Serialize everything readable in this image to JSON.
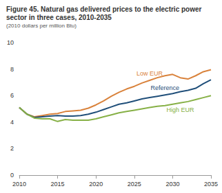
{
  "chart_data": {
    "type": "line",
    "title": "Figure 45. Natural gas delivered prices to the electric power sector in three cases, 2010-2035",
    "subtitle": "(2010 dollars per million Btu)",
    "x": [
      2010,
      2011,
      2012,
      2013,
      2014,
      2015,
      2016,
      2017,
      2018,
      2019,
      2020,
      2021,
      2022,
      2023,
      2024,
      2025,
      2026,
      2027,
      2028,
      2029,
      2030,
      2031,
      2032,
      2033,
      2034,
      2035
    ],
    "series": [
      {
        "name": "Low EUR",
        "color": "#d9823b",
        "values": [
          5.1,
          4.6,
          4.4,
          4.5,
          4.6,
          4.65,
          4.8,
          4.85,
          4.9,
          5.05,
          5.3,
          5.6,
          5.95,
          6.25,
          6.5,
          6.7,
          6.95,
          7.15,
          7.35,
          7.5,
          7.6,
          7.35,
          7.25,
          7.5,
          7.8,
          7.95
        ]
      },
      {
        "name": "Reference",
        "color": "#1f4e79",
        "values": [
          5.1,
          4.6,
          4.35,
          4.4,
          4.45,
          4.5,
          4.45,
          4.45,
          4.5,
          4.6,
          4.75,
          4.95,
          5.15,
          5.35,
          5.45,
          5.6,
          5.75,
          5.85,
          5.95,
          6.05,
          6.15,
          6.3,
          6.4,
          6.55,
          6.9,
          7.2
        ]
      },
      {
        "name": "High EUR",
        "color": "#86b045",
        "values": [
          5.1,
          4.6,
          4.3,
          4.25,
          4.25,
          4.05,
          4.2,
          4.15,
          4.15,
          4.15,
          4.25,
          4.4,
          4.55,
          4.7,
          4.8,
          4.9,
          5.0,
          5.1,
          5.2,
          5.25,
          5.35,
          5.45,
          5.55,
          5.7,
          5.85,
          6.0
        ]
      }
    ],
    "xlim": [
      2010,
      2035
    ],
    "xticks": [
      2010,
      2015,
      2020,
      2025,
      2030,
      2035
    ],
    "ylim": [
      0,
      10
    ],
    "yticks": [
      0,
      2,
      4,
      6,
      8,
      10
    ],
    "grid": false
  }
}
